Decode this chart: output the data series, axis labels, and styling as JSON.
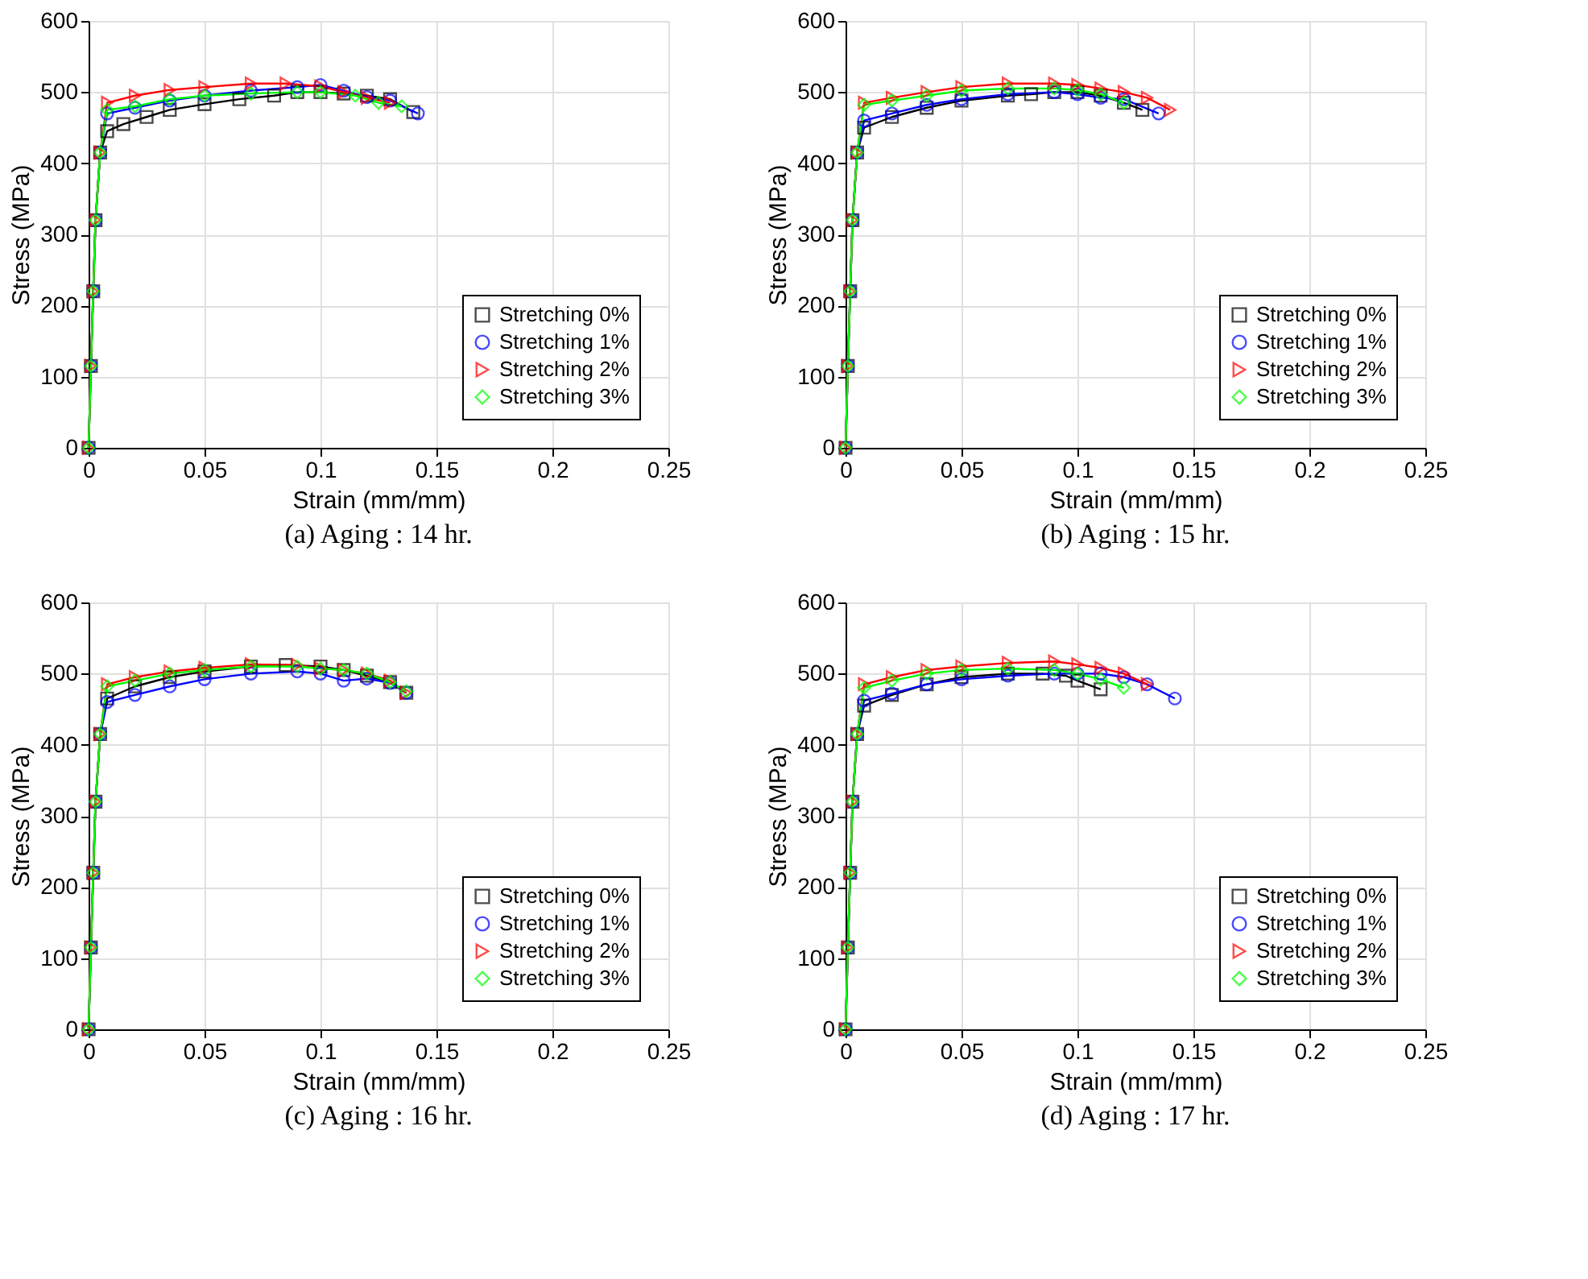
{
  "chart_data": [
    {
      "type": "line",
      "title": "(a) Aging : 14 hr.",
      "xlabel": "Strain (mm/mm)",
      "ylabel": "Stress (MPa)",
      "xlim": [
        0,
        0.25
      ],
      "xticks": [
        0,
        0.05,
        0.1,
        0.15,
        0.2,
        0.25
      ],
      "ylim": [
        0,
        600
      ],
      "yticks": [
        0,
        100,
        200,
        300,
        400,
        500,
        600
      ],
      "grid": true,
      "legend": "bottom right",
      "line_style": "solid",
      "series": [
        {
          "name": "Stretching 0%",
          "color": "#000000",
          "marker": "square",
          "x": [
            0,
            0.001,
            0.002,
            0.003,
            0.005,
            0.008,
            0.015,
            0.025,
            0.035,
            0.05,
            0.065,
            0.08,
            0.09,
            0.1,
            0.11,
            0.12,
            0.13,
            0.14
          ],
          "values": [
            0,
            115,
            220,
            320,
            415,
            445,
            455,
            465,
            475,
            483,
            490,
            495,
            500,
            500,
            498,
            495,
            490,
            472
          ]
        },
        {
          "name": "Stretching 1%",
          "color": "#0000ff",
          "marker": "circle",
          "x": [
            0,
            0.001,
            0.002,
            0.003,
            0.005,
            0.008,
            0.02,
            0.035,
            0.05,
            0.07,
            0.09,
            0.1,
            0.11,
            0.12,
            0.13,
            0.142
          ],
          "values": [
            0,
            115,
            220,
            320,
            415,
            470,
            478,
            488,
            495,
            502,
            507,
            510,
            502,
            493,
            488,
            470
          ]
        },
        {
          "name": "Stretching 2%",
          "color": "#ff0000",
          "marker": "triangle",
          "x": [
            0,
            0.001,
            0.002,
            0.003,
            0.005,
            0.008,
            0.02,
            0.035,
            0.05,
            0.07,
            0.085,
            0.1,
            0.11,
            0.12,
            0.13
          ],
          "values": [
            0,
            115,
            220,
            320,
            415,
            485,
            495,
            503,
            507,
            512,
            512,
            508,
            500,
            492,
            485
          ]
        },
        {
          "name": "Stretching 3%",
          "color": "#00ff00",
          "marker": "diamond",
          "x": [
            0,
            0.001,
            0.002,
            0.003,
            0.005,
            0.008,
            0.02,
            0.035,
            0.05,
            0.07,
            0.09,
            0.1,
            0.115,
            0.125,
            0.135
          ],
          "values": [
            0,
            115,
            220,
            320,
            415,
            475,
            480,
            490,
            495,
            498,
            500,
            500,
            495,
            485,
            480
          ]
        }
      ]
    },
    {
      "type": "line",
      "title": "(b) Aging : 15 hr.",
      "xlabel": "Strain (mm/mm)",
      "ylabel": "Stress (MPa)",
      "xlim": [
        0,
        0.25
      ],
      "xticks": [
        0,
        0.05,
        0.1,
        0.15,
        0.2,
        0.25
      ],
      "ylim": [
        0,
        600
      ],
      "yticks": [
        0,
        100,
        200,
        300,
        400,
        500,
        600
      ],
      "grid": true,
      "legend": "bottom right",
      "line_style": "solid",
      "series": [
        {
          "name": "Stretching 0%",
          "color": "#000000",
          "marker": "square",
          "x": [
            0,
            0.001,
            0.002,
            0.003,
            0.005,
            0.008,
            0.02,
            0.035,
            0.05,
            0.07,
            0.08,
            0.09,
            0.1,
            0.11,
            0.12,
            0.128
          ],
          "values": [
            0,
            115,
            220,
            320,
            415,
            450,
            465,
            478,
            488,
            495,
            497,
            500,
            500,
            495,
            485,
            475
          ]
        },
        {
          "name": "Stretching 1%",
          "color": "#0000ff",
          "marker": "circle",
          "x": [
            0,
            0.001,
            0.002,
            0.003,
            0.005,
            0.008,
            0.02,
            0.035,
            0.05,
            0.07,
            0.09,
            0.1,
            0.11,
            0.12,
            0.135
          ],
          "values": [
            0,
            115,
            220,
            320,
            415,
            460,
            470,
            482,
            490,
            497,
            500,
            497,
            492,
            490,
            470
          ]
        },
        {
          "name": "Stretching 2%",
          "color": "#ff0000",
          "marker": "triangle",
          "x": [
            0,
            0.001,
            0.002,
            0.003,
            0.005,
            0.008,
            0.02,
            0.035,
            0.05,
            0.07,
            0.09,
            0.1,
            0.11,
            0.12,
            0.13,
            0.14
          ],
          "values": [
            0,
            115,
            220,
            320,
            415,
            485,
            492,
            500,
            507,
            512,
            512,
            510,
            505,
            500,
            492,
            475
          ]
        },
        {
          "name": "Stretching 3%",
          "color": "#00ff00",
          "marker": "diamond",
          "x": [
            0,
            0.001,
            0.002,
            0.003,
            0.005,
            0.008,
            0.02,
            0.035,
            0.05,
            0.07,
            0.09,
            0.1,
            0.11,
            0.12
          ],
          "values": [
            0,
            115,
            220,
            320,
            415,
            482,
            488,
            495,
            502,
            505,
            505,
            503,
            497,
            485
          ]
        }
      ]
    },
    {
      "type": "line",
      "title": "(c) Aging : 16 hr.",
      "xlabel": "Strain (mm/mm)",
      "ylabel": "Stress (MPa)",
      "xlim": [
        0,
        0.25
      ],
      "xticks": [
        0,
        0.05,
        0.1,
        0.15,
        0.2,
        0.25
      ],
      "ylim": [
        0,
        600
      ],
      "yticks": [
        0,
        100,
        200,
        300,
        400,
        500,
        600
      ],
      "grid": true,
      "legend": "bottom right",
      "line_style": "solid",
      "series": [
        {
          "name": "Stretching 0%",
          "color": "#000000",
          "marker": "square",
          "x": [
            0,
            0.001,
            0.002,
            0.003,
            0.005,
            0.008,
            0.02,
            0.035,
            0.05,
            0.07,
            0.085,
            0.1,
            0.11,
            0.12,
            0.13,
            0.137
          ],
          "values": [
            0,
            115,
            220,
            320,
            415,
            465,
            482,
            495,
            503,
            510,
            512,
            510,
            505,
            497,
            488,
            473
          ]
        },
        {
          "name": "Stretching 1%",
          "color": "#0000ff",
          "marker": "circle",
          "x": [
            0,
            0.001,
            0.002,
            0.003,
            0.005,
            0.008,
            0.02,
            0.035,
            0.05,
            0.07,
            0.09,
            0.1,
            0.11,
            0.12,
            0.13,
            0.137
          ],
          "values": [
            0,
            115,
            220,
            320,
            415,
            460,
            470,
            482,
            492,
            500,
            503,
            500,
            490,
            493,
            487,
            473
          ]
        },
        {
          "name": "Stretching 2%",
          "color": "#ff0000",
          "marker": "triangle",
          "x": [
            0,
            0.001,
            0.002,
            0.003,
            0.005,
            0.008,
            0.02,
            0.035,
            0.05,
            0.07,
            0.09,
            0.1,
            0.11,
            0.12,
            0.13,
            0.137
          ],
          "values": [
            0,
            115,
            220,
            320,
            415,
            485,
            495,
            503,
            508,
            513,
            512,
            507,
            505,
            500,
            490,
            473
          ]
        },
        {
          "name": "Stretching 3%",
          "color": "#00ff00",
          "marker": "diamond",
          "x": [
            0,
            0.001,
            0.002,
            0.003,
            0.005,
            0.008,
            0.02,
            0.035,
            0.05,
            0.07,
            0.09,
            0.1,
            0.11,
            0.12,
            0.13,
            0.137
          ],
          "values": [
            0,
            115,
            220,
            320,
            415,
            482,
            490,
            500,
            505,
            510,
            510,
            507,
            505,
            500,
            488,
            475
          ]
        }
      ]
    },
    {
      "type": "line",
      "title": "(d) Aging : 17 hr.",
      "xlabel": "Strain (mm/mm)",
      "ylabel": "Stress (MPa)",
      "xlim": [
        0,
        0.25
      ],
      "xticks": [
        0,
        0.05,
        0.1,
        0.15,
        0.2,
        0.25
      ],
      "ylim": [
        0,
        600
      ],
      "yticks": [
        0,
        100,
        200,
        300,
        400,
        500,
        600
      ],
      "grid": true,
      "legend": "bottom right",
      "line_style": "solid",
      "series": [
        {
          "name": "Stretching 0%",
          "color": "#000000",
          "marker": "square",
          "x": [
            0,
            0.001,
            0.002,
            0.003,
            0.005,
            0.008,
            0.02,
            0.035,
            0.05,
            0.07,
            0.085,
            0.095,
            0.1,
            0.11
          ],
          "values": [
            0,
            115,
            220,
            320,
            415,
            455,
            470,
            485,
            495,
            500,
            500,
            497,
            490,
            478
          ]
        },
        {
          "name": "Stretching 1%",
          "color": "#0000ff",
          "marker": "circle",
          "x": [
            0,
            0.001,
            0.002,
            0.003,
            0.005,
            0.008,
            0.02,
            0.035,
            0.05,
            0.07,
            0.09,
            0.1,
            0.11,
            0.12,
            0.13,
            0.142
          ],
          "values": [
            0,
            115,
            220,
            320,
            415,
            462,
            472,
            485,
            492,
            497,
            500,
            500,
            500,
            495,
            485,
            465
          ]
        },
        {
          "name": "Stretching 2%",
          "color": "#ff0000",
          "marker": "triangle",
          "x": [
            0,
            0.001,
            0.002,
            0.003,
            0.005,
            0.008,
            0.02,
            0.035,
            0.05,
            0.07,
            0.09,
            0.1,
            0.11,
            0.12,
            0.13
          ],
          "values": [
            0,
            115,
            220,
            320,
            415,
            485,
            495,
            505,
            510,
            515,
            517,
            513,
            508,
            500,
            485
          ]
        },
        {
          "name": "Stretching 3%",
          "color": "#00ff00",
          "marker": "diamond",
          "x": [
            0,
            0.001,
            0.002,
            0.003,
            0.005,
            0.008,
            0.02,
            0.035,
            0.05,
            0.07,
            0.09,
            0.1,
            0.11,
            0.12
          ],
          "values": [
            0,
            115,
            220,
            320,
            415,
            480,
            490,
            500,
            505,
            507,
            505,
            500,
            492,
            480
          ]
        }
      ]
    }
  ]
}
